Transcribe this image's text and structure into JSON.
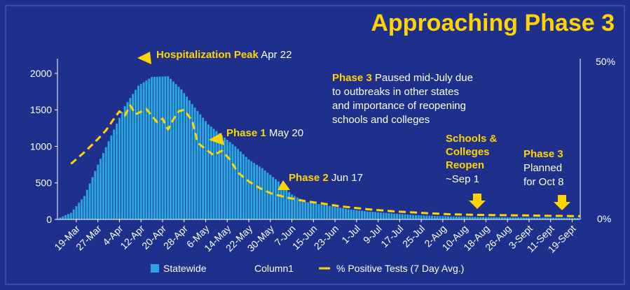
{
  "title": "Approaching Phase 3",
  "chart_data": {
    "type": "bar",
    "x_start": "2020-03-12",
    "x_end": "2020-09-22",
    "x_tick_labels": [
      "19-Mar",
      "27-Mar",
      "4-Apr",
      "12-Apr",
      "20-Apr",
      "28-Apr",
      "6-May",
      "14-May",
      "22-May",
      "30-May",
      "7-Jun",
      "15-Jun",
      "23-Jun",
      "1-Jul",
      "9-Jul",
      "17-Jul",
      "25-Jul",
      "2-Aug",
      "10-Aug",
      "18-Aug",
      "26-Aug",
      "3-Sept",
      "11-Sept",
      "19-Sept"
    ],
    "y_ticks": [
      0,
      500,
      1000,
      1500,
      2000
    ],
    "ylim": [
      0,
      2200
    ],
    "y2_ticks": [
      "0%",
      "50%"
    ],
    "series": [
      {
        "name": "Statewide",
        "color": "#29a9e0",
        "chart_type": "bar",
        "anchors": [
          [
            "2020-03-12",
            10
          ],
          [
            "2020-03-17",
            90
          ],
          [
            "2020-03-22",
            320
          ],
          [
            "2020-03-27",
            750
          ],
          [
            "2020-04-01",
            1150
          ],
          [
            "2020-04-06",
            1550
          ],
          [
            "2020-04-11",
            1830
          ],
          [
            "2020-04-16",
            1950
          ],
          [
            "2020-04-22",
            1960
          ],
          [
            "2020-04-27",
            1780
          ],
          [
            "2020-05-02",
            1530
          ],
          [
            "2020-05-07",
            1300
          ],
          [
            "2020-05-12",
            1150
          ],
          [
            "2020-05-17",
            1000
          ],
          [
            "2020-05-22",
            820
          ],
          [
            "2020-05-27",
            700
          ],
          [
            "2020-06-02",
            520
          ],
          [
            "2020-06-07",
            340
          ],
          [
            "2020-06-12",
            240
          ],
          [
            "2020-06-17",
            210
          ],
          [
            "2020-06-22",
            180
          ],
          [
            "2020-06-28",
            140
          ],
          [
            "2020-07-05",
            110
          ],
          [
            "2020-07-15",
            80
          ],
          [
            "2020-07-25",
            55
          ],
          [
            "2020-08-05",
            40
          ],
          [
            "2020-08-20",
            30
          ],
          [
            "2020-09-05",
            25
          ],
          [
            "2020-09-22",
            20
          ]
        ]
      },
      {
        "name": "Column1",
        "chart_type": "none",
        "values": []
      },
      {
        "name": "% Positive Tests (7 Day Avg.)",
        "color": "#ffd400",
        "chart_type": "line",
        "dashed": true,
        "points": [
          [
            "2020-03-17",
            760
          ],
          [
            "2020-03-22",
            920
          ],
          [
            "2020-03-27",
            1100
          ],
          [
            "2020-03-30",
            1220
          ],
          [
            "2020-04-02",
            1380
          ],
          [
            "2020-04-04",
            1480
          ],
          [
            "2020-04-06",
            1420
          ],
          [
            "2020-04-08",
            1560
          ],
          [
            "2020-04-10",
            1440
          ],
          [
            "2020-04-14",
            1510
          ],
          [
            "2020-04-18",
            1330
          ],
          [
            "2020-04-20",
            1380
          ],
          [
            "2020-04-22",
            1230
          ],
          [
            "2020-04-24",
            1370
          ],
          [
            "2020-04-26",
            1480
          ],
          [
            "2020-04-28",
            1500
          ],
          [
            "2020-05-01",
            1350
          ],
          [
            "2020-05-03",
            1050
          ],
          [
            "2020-05-06",
            960
          ],
          [
            "2020-05-09",
            880
          ],
          [
            "2020-05-12",
            940
          ],
          [
            "2020-05-15",
            820
          ],
          [
            "2020-05-18",
            640
          ],
          [
            "2020-05-22",
            520
          ],
          [
            "2020-05-26",
            430
          ],
          [
            "2020-05-30",
            360
          ],
          [
            "2020-06-05",
            300
          ],
          [
            "2020-06-12",
            250
          ],
          [
            "2020-06-18",
            220
          ],
          [
            "2020-06-25",
            180
          ],
          [
            "2020-07-05",
            140
          ],
          [
            "2020-07-15",
            110
          ],
          [
            "2020-07-25",
            90
          ],
          [
            "2020-08-05",
            70
          ],
          [
            "2020-08-18",
            60
          ],
          [
            "2020-09-01",
            55
          ],
          [
            "2020-09-10",
            50
          ],
          [
            "2020-09-22",
            45
          ]
        ]
      }
    ],
    "annotations": [
      {
        "bold": "Hospitalization Peak",
        "text": " Apr 22"
      },
      {
        "bold": "Phase 1",
        "text": " May 20"
      },
      {
        "bold": "Phase 2",
        "text": " Jun 17"
      },
      {
        "bold": "Phase 3",
        "text": " Paused mid-July due",
        "lines": [
          "to outbreaks in other states",
          "and importance of reopening",
          "schools and colleges"
        ]
      },
      {
        "bold_lines": [
          "Schools &",
          "Colleges",
          "Reopen"
        ],
        "lines": [
          "~Sep 1"
        ]
      },
      {
        "bold_lines": [
          "Phase 3"
        ],
        "lines": [
          "Planned",
          "for Oct 8"
        ]
      }
    ],
    "legend": [
      "Statewide",
      "Column1",
      "% Positive Tests (7 Day Avg.)"
    ],
    "legend_position": "bottom",
    "grid": false
  }
}
